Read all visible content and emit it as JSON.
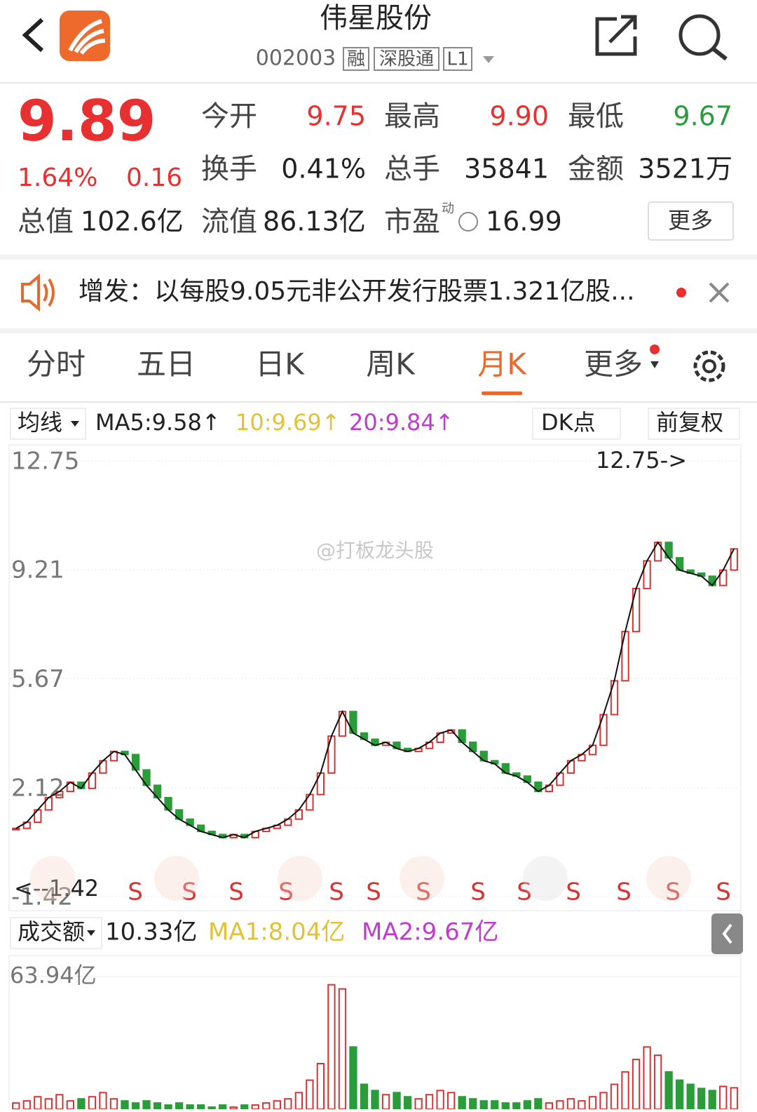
{
  "header": {
    "title": "伟星股份",
    "code": "002003",
    "tags": [
      "融",
      "深股通",
      "L1"
    ]
  },
  "quote": {
    "price": "9.89",
    "change_pct": "1.64%",
    "change": "0.16",
    "fields": [
      {
        "label": "今开",
        "value": "9.75"
      },
      {
        "label": "最高",
        "value": "9.90"
      },
      {
        "label": "最低",
        "value": "9.67"
      },
      {
        "label": "换手",
        "value": "0.41%"
      },
      {
        "label": "总手",
        "value": "35841"
      },
      {
        "label": "金额",
        "value": "3521万"
      }
    ],
    "row3": [
      {
        "label": "总值",
        "value": "102.6亿"
      },
      {
        "label": "流值",
        "value": "86.13亿"
      },
      {
        "label": "市盈",
        "value": "16.99"
      }
    ],
    "pe_sup": "动",
    "more": "更多"
  },
  "notice": "增发：以每股9.05元非公开发行股票1.321亿股...",
  "tabs": {
    "items": [
      "分时",
      "五日",
      "日K",
      "周K",
      "月K",
      "更多"
    ],
    "active": 4
  },
  "indicators": {
    "ma_menu": "均线",
    "ma5": "MA5:9.58↑",
    "ma10": "10:9.69↑",
    "ma20": "20:9.84↑",
    "dk": "DK点",
    "adjust": "前复权"
  },
  "price_chart": {
    "type": "candlestick",
    "ylim": [
      -1.42,
      12.75
    ],
    "yticks": [
      12.75,
      9.21,
      5.67,
      2.12,
      -1.42
    ],
    "max_label": "12.75->",
    "min_label": "<--1.42",
    "watermark": "@打板龙头股",
    "signals": [
      "S",
      "S",
      "S",
      "S",
      "S",
      "S",
      "S",
      "S",
      "S",
      "S",
      "S",
      "S",
      "S"
    ],
    "closes": [
      0.8,
      1.0,
      1.4,
      1.8,
      2.0,
      2.3,
      2.1,
      2.6,
      3.0,
      3.3,
      3.2,
      2.7,
      2.2,
      1.8,
      1.4,
      1.1,
      0.9,
      0.7,
      0.6,
      0.5,
      0.6,
      0.5,
      0.7,
      0.8,
      0.9,
      1.1,
      1.4,
      1.9,
      2.6,
      3.8,
      4.6,
      3.9,
      3.7,
      3.5,
      3.6,
      3.4,
      3.3,
      3.4,
      3.6,
      3.9,
      4.0,
      3.6,
      3.3,
      3.0,
      2.9,
      2.6,
      2.5,
      2.3,
      2.0,
      2.2,
      2.6,
      3.0,
      3.2,
      3.5,
      4.5,
      5.6,
      7.2,
      8.6,
      9.5,
      10.1,
      9.6,
      9.2,
      9.1,
      9.0,
      8.7,
      9.2,
      9.89
    ]
  },
  "volume": {
    "menu": "成交额",
    "current": "10.33亿",
    "ma1": "MA1:8.04亿",
    "ma2": "MA2:9.67亿",
    "ylim": [
      0,
      63.94
    ],
    "yticks": [
      {
        "value": 63.94,
        "label": "63.94亿"
      }
    ],
    "values": [
      3,
      4,
      6,
      5,
      7,
      4,
      5,
      6,
      8,
      5,
      4,
      3,
      4,
      3,
      2,
      3,
      2,
      2,
      1,
      2,
      1,
      2,
      2,
      3,
      4,
      5,
      8,
      14,
      22,
      60,
      58,
      30,
      12,
      9,
      7,
      8,
      6,
      5,
      7,
      9,
      8,
      6,
      5,
      4,
      4,
      3,
      3,
      4,
      5,
      3,
      4,
      5,
      4,
      6,
      8,
      12,
      18,
      24,
      30,
      26,
      18,
      14,
      12,
      10,
      9,
      11,
      10.33
    ]
  }
}
